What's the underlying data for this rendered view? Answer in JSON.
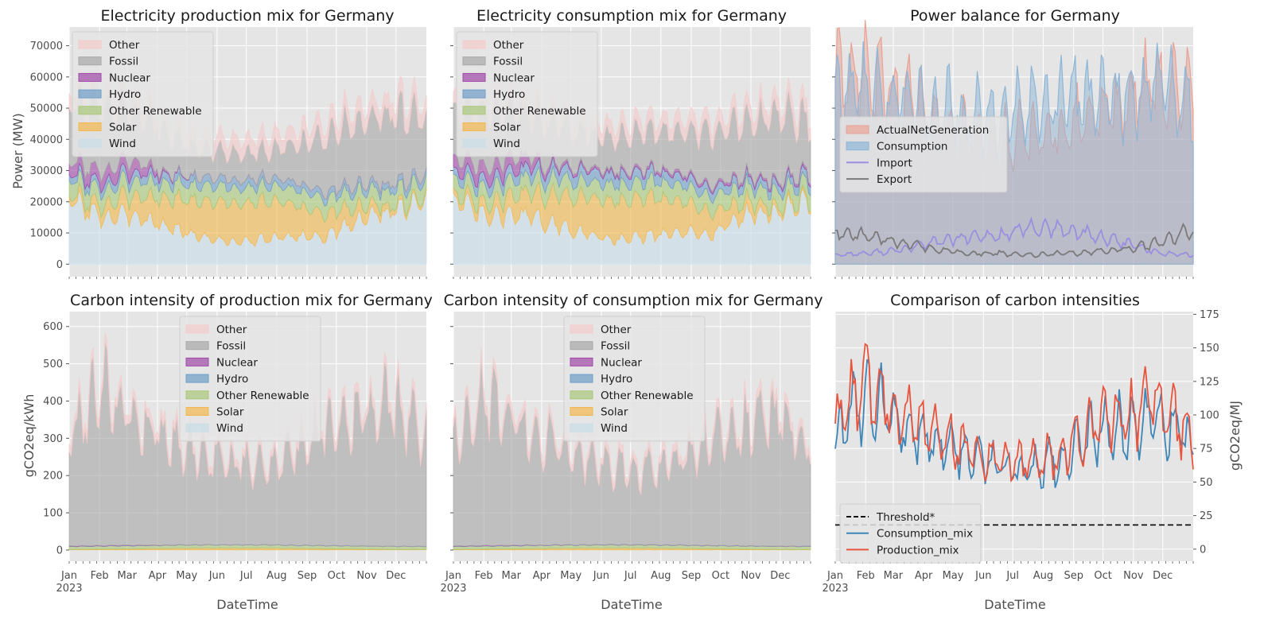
{
  "figure": {
    "x_axis_label": "DateTime",
    "x_axis_year": "2023",
    "months": [
      "Jan",
      "Feb",
      "Mar",
      "Apr",
      "May",
      "Jun",
      "Jul",
      "Aug",
      "Sep",
      "Oct",
      "Nov",
      "Dec"
    ],
    "colors": {
      "Other": "#f4cccc",
      "Fossil": "#a8a8a8",
      "Nuclear": "#a04aa8",
      "Hydro": "#6f9ec8",
      "Other Renewable": "#a9c87a",
      "Solar": "#f2b84f",
      "Wind": "#c9dde8",
      "ActualNetGeneration": "#e8a296",
      "Consumption": "#8fb6d6",
      "Import": "#9a8ee0",
      "Export": "#7a7a7a",
      "Threshold*": "#111111",
      "Consumption_mix": "#3f86b8",
      "Production_mix": "#e8553e",
      "plot_background": "#e5e5e5",
      "grid": "#ffffff"
    }
  },
  "chart_data": [
    {
      "id": "production-mix",
      "type": "area",
      "title": "Electricity production mix for Germany",
      "ylabel": "Power (MW)",
      "xlabel": "",
      "ylim": [
        -4000,
        76000
      ],
      "yticks": [
        0,
        10000,
        20000,
        30000,
        40000,
        50000,
        60000,
        70000
      ],
      "stack_order": [
        "Wind",
        "Solar",
        "Other Renewable",
        "Hydro",
        "Nuclear",
        "Fossil",
        "Other"
      ],
      "legend": [
        "Other",
        "Fossil",
        "Nuclear",
        "Hydro",
        "Other Renewable",
        "Solar",
        "Wind"
      ],
      "legend_position": "upper-left",
      "x_months": [
        "Jan",
        "Feb",
        "Mar",
        "Apr",
        "May",
        "Jun",
        "Jul",
        "Aug",
        "Sep",
        "Oct",
        "Nov",
        "Dec"
      ],
      "series": [
        {
          "name": "Wind",
          "values": [
            21000,
            15000,
            16000,
            12000,
            9000,
            7000,
            8000,
            9000,
            9000,
            15000,
            17000,
            20000
          ]
        },
        {
          "name": "Solar",
          "values": [
            1500,
            3500,
            6500,
            9000,
            11500,
            12500,
            12000,
            10000,
            7000,
            4000,
            1500,
            800
          ]
        },
        {
          "name": "Other Renewable",
          "values": [
            5000,
            5000,
            5000,
            5000,
            5000,
            5000,
            5000,
            5000,
            5000,
            5000,
            5000,
            5000
          ]
        },
        {
          "name": "Hydro",
          "values": [
            2000,
            2200,
            2500,
            2500,
            2600,
            2500,
            2300,
            2200,
            2000,
            2000,
            2000,
            2000
          ]
        },
        {
          "name": "Nuclear",
          "values": [
            3800,
            3800,
            3800,
            600,
            0,
            0,
            0,
            0,
            0,
            0,
            0,
            0
          ]
        },
        {
          "name": "Fossil",
          "values": [
            18000,
            20000,
            16000,
            13000,
            9000,
            8500,
            9000,
            12000,
            18000,
            20000,
            23000,
            18000
          ]
        },
        {
          "name": "Other",
          "values": [
            4500,
            4500,
            4500,
            4500,
            4500,
            4500,
            4500,
            4500,
            4500,
            4500,
            4500,
            4500
          ]
        }
      ]
    },
    {
      "id": "consumption-mix",
      "type": "area",
      "title": "Electricity consumption mix for Germany",
      "ylabel": "",
      "xlabel": "",
      "ylim": [
        -4000,
        76000
      ],
      "stack_order": [
        "Wind",
        "Solar",
        "Other Renewable",
        "Hydro",
        "Nuclear",
        "Fossil",
        "Other"
      ],
      "legend": [
        "Other",
        "Fossil",
        "Nuclear",
        "Hydro",
        "Other Renewable",
        "Solar",
        "Wind"
      ],
      "legend_position": "upper-left",
      "x_months": [
        "Jan",
        "Feb",
        "Mar",
        "Apr",
        "May",
        "Jun",
        "Jul",
        "Aug",
        "Sep",
        "Oct",
        "Nov",
        "Dec"
      ],
      "series": [
        {
          "name": "Wind",
          "values": [
            21000,
            15000,
            16000,
            13000,
            10000,
            8000,
            9000,
            10000,
            10000,
            16000,
            17000,
            20000
          ]
        },
        {
          "name": "Solar",
          "values": [
            1500,
            3500,
            6500,
            9000,
            11500,
            12500,
            12000,
            10000,
            7000,
            4000,
            1500,
            800
          ]
        },
        {
          "name": "Other Renewable",
          "values": [
            5000,
            5000,
            5000,
            5200,
            5200,
            5200,
            5200,
            5200,
            5000,
            5000,
            5000,
            5000
          ]
        },
        {
          "name": "Hydro",
          "values": [
            2500,
            2800,
            3000,
            3200,
            3500,
            3400,
            3200,
            3000,
            2700,
            2500,
            2500,
            2500
          ]
        },
        {
          "name": "Nuclear",
          "values": [
            4000,
            4000,
            4000,
            1200,
            900,
            900,
            900,
            900,
            900,
            900,
            900,
            900
          ]
        },
        {
          "name": "Fossil",
          "values": [
            15000,
            17000,
            14000,
            13000,
            11000,
            11000,
            12000,
            13000,
            17000,
            18000,
            21000,
            16000
          ]
        },
        {
          "name": "Other",
          "values": [
            4000,
            4000,
            4000,
            4000,
            4000,
            4000,
            4000,
            4000,
            4000,
            4000,
            4000,
            4000
          ]
        }
      ]
    },
    {
      "id": "power-balance",
      "type": "area",
      "title": "Power balance for Germany",
      "ylabel": "",
      "xlabel": "",
      "ylim": [
        -4000,
        76000
      ],
      "legend": [
        "ActualNetGeneration",
        "Consumption",
        "Import",
        "Export"
      ],
      "legend_position": "center-left",
      "x_months": [
        "Jan",
        "Feb",
        "Mar",
        "Apr",
        "May",
        "Jun",
        "Jul",
        "Aug",
        "Sep",
        "Oct",
        "Nov",
        "Dec"
      ],
      "series": [
        {
          "name": "ActualNetGeneration",
          "style": "area",
          "values": [
            58000,
            62000,
            54000,
            48000,
            42000,
            40000,
            41000,
            44000,
            48000,
            52000,
            58000,
            55000
          ]
        },
        {
          "name": "Consumption",
          "style": "area",
          "values": [
            55000,
            56000,
            52000,
            50000,
            48000,
            48000,
            50000,
            52000,
            53000,
            54000,
            58000,
            53000
          ]
        },
        {
          "name": "Import",
          "style": "line",
          "values": [
            3000,
            3500,
            4500,
            7000,
            8500,
            9000,
            11500,
            11000,
            9000,
            6500,
            3500,
            3000
          ]
        },
        {
          "name": "Export",
          "style": "line",
          "values": [
            10000,
            9000,
            7000,
            5000,
            3500,
            3500,
            3000,
            3500,
            4000,
            5000,
            7000,
            11000
          ]
        }
      ]
    },
    {
      "id": "carbon-production",
      "type": "area",
      "title": "Carbon intensity of production mix for Germany",
      "ylabel": "gCO2eq/kWh",
      "xlabel": "DateTime",
      "ylim": [
        -30,
        640
      ],
      "yticks": [
        0,
        100,
        200,
        300,
        400,
        500,
        600
      ],
      "stack_order": [
        "Wind",
        "Solar",
        "Other Renewable",
        "Hydro",
        "Nuclear",
        "Fossil",
        "Other"
      ],
      "legend": [
        "Other",
        "Fossil",
        "Nuclear",
        "Hydro",
        "Other Renewable",
        "Solar",
        "Wind"
      ],
      "legend_position": "upper-center",
      "x_months": [
        "Jan",
        "Feb",
        "Mar",
        "Apr",
        "May",
        "Jun",
        "Jul",
        "Aug",
        "Sep",
        "Oct",
        "Nov",
        "Dec"
      ],
      "series": [
        {
          "name": "Wind",
          "values": [
            0.5,
            0.5,
            0.5,
            0.5,
            0.5,
            0.5,
            0.5,
            0.5,
            0.5,
            0.5,
            0.5,
            0.5
          ]
        },
        {
          "name": "Solar",
          "values": [
            1,
            2,
            3,
            4,
            5,
            5,
            5,
            4,
            3,
            2,
            1,
            1
          ]
        },
        {
          "name": "Other Renewable",
          "values": [
            8,
            8,
            8,
            8,
            8,
            8,
            8,
            8,
            8,
            8,
            8,
            8
          ]
        },
        {
          "name": "Hydro",
          "values": [
            0.5,
            0.5,
            0.5,
            0.5,
            0.5,
            0.5,
            0.5,
            0.5,
            0.5,
            0.5,
            0.5,
            0.5
          ]
        },
        {
          "name": "Nuclear",
          "values": [
            1,
            1,
            1,
            0.3,
            0,
            0,
            0,
            0,
            0,
            0,
            0,
            0
          ]
        },
        {
          "name": "Fossil",
          "values": [
            300,
            430,
            340,
            290,
            250,
            220,
            210,
            260,
            330,
            350,
            380,
            290
          ]
        },
        {
          "name": "Other",
          "values": [
            20,
            25,
            22,
            20,
            18,
            18,
            18,
            20,
            22,
            23,
            25,
            20
          ]
        }
      ]
    },
    {
      "id": "carbon-consumption",
      "type": "area",
      "title": "Carbon intensity of consumption mix for Germany",
      "ylabel": "",
      "xlabel": "DateTime",
      "ylim": [
        -30,
        640
      ],
      "stack_order": [
        "Wind",
        "Solar",
        "Other Renewable",
        "Hydro",
        "Nuclear",
        "Fossil",
        "Other"
      ],
      "legend": [
        "Other",
        "Fossil",
        "Nuclear",
        "Hydro",
        "Other Renewable",
        "Solar",
        "Wind"
      ],
      "legend_position": "upper-center",
      "x_months": [
        "Jan",
        "Feb",
        "Mar",
        "Apr",
        "May",
        "Jun",
        "Jul",
        "Aug",
        "Sep",
        "Oct",
        "Nov",
        "Dec"
      ],
      "series": [
        {
          "name": "Wind",
          "values": [
            0.5,
            0.5,
            0.5,
            0.5,
            0.5,
            0.5,
            0.5,
            0.5,
            0.5,
            0.5,
            0.5,
            0.5
          ]
        },
        {
          "name": "Solar",
          "values": [
            1,
            2,
            3,
            4,
            5,
            5,
            5,
            4,
            3,
            2,
            1,
            1
          ]
        },
        {
          "name": "Other Renewable",
          "values": [
            8,
            8,
            8,
            8,
            8,
            8,
            8,
            8,
            8,
            8,
            8,
            8
          ]
        },
        {
          "name": "Hydro",
          "values": [
            0.5,
            0.5,
            0.5,
            0.5,
            0.5,
            0.5,
            0.5,
            0.5,
            0.5,
            0.5,
            0.5,
            0.5
          ]
        },
        {
          "name": "Nuclear",
          "values": [
            1,
            1,
            1,
            0.5,
            0.3,
            0.3,
            0.3,
            0.3,
            0.3,
            0.3,
            0.3,
            0.3
          ]
        },
        {
          "name": "Fossil",
          "values": [
            280,
            400,
            320,
            280,
            240,
            210,
            200,
            230,
            300,
            320,
            350,
            270
          ]
        },
        {
          "name": "Other",
          "values": [
            20,
            25,
            22,
            20,
            18,
            18,
            18,
            20,
            22,
            23,
            25,
            20
          ]
        }
      ]
    },
    {
      "id": "carbon-comparison",
      "type": "line",
      "title": "Comparison of carbon intensities",
      "ylabel_right": "gCO2eq/MJ",
      "xlabel": "DateTime",
      "ylim": [
        -9,
        177
      ],
      "yticks_right": [
        0,
        25,
        50,
        75,
        100,
        125,
        150,
        175
      ],
      "legend": [
        "Threshold*",
        "Consumption_mix",
        "Production_mix"
      ],
      "legend_position": "lower-left",
      "x_months": [
        "Jan",
        "Feb",
        "Mar",
        "Apr",
        "May",
        "Jun",
        "Jul",
        "Aug",
        "Sep",
        "Oct",
        "Nov",
        "Dec"
      ],
      "series": [
        {
          "name": "Threshold*",
          "style": "dashed",
          "values": [
            18,
            18,
            18,
            18,
            18,
            18,
            18,
            18,
            18,
            18,
            18,
            18
          ]
        },
        {
          "name": "Consumption_mix",
          "values": [
            85,
            115,
            95,
            80,
            70,
            62,
            60,
            68,
            88,
            92,
            100,
            75
          ]
        },
        {
          "name": "Production_mix",
          "values": [
            92,
            125,
            102,
            86,
            75,
            66,
            63,
            72,
            95,
            100,
            110,
            82
          ]
        }
      ]
    }
  ]
}
